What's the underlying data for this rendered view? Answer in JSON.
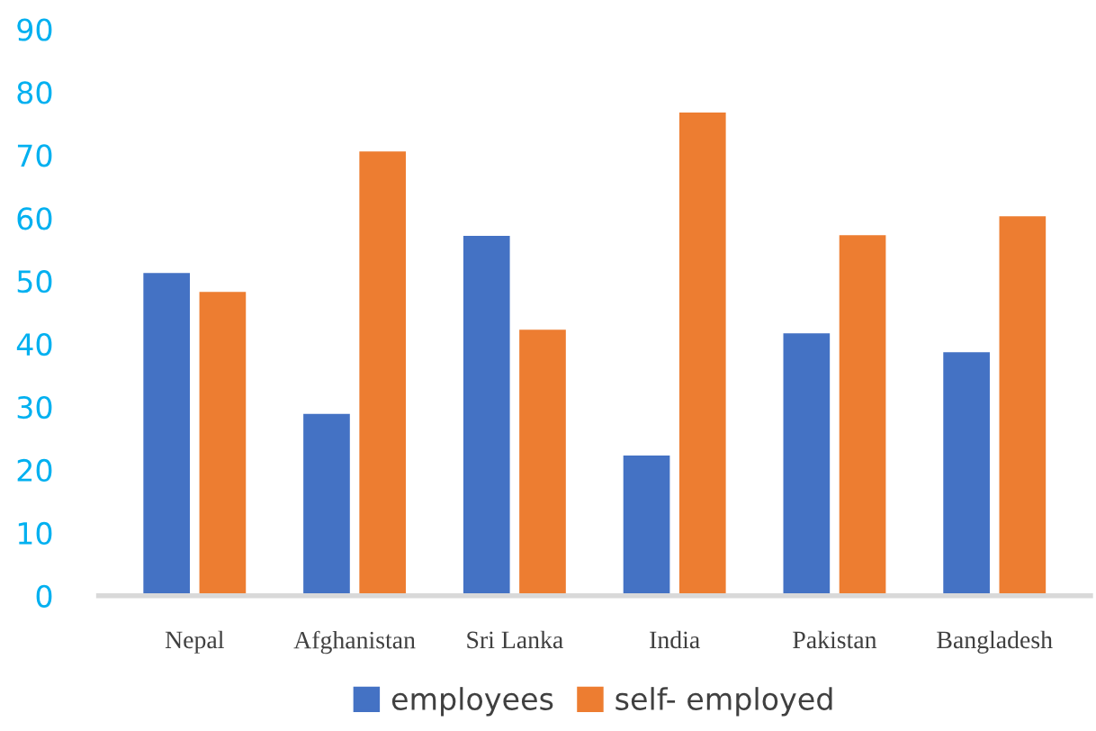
{
  "chart_data": {
    "type": "bar",
    "categories": [
      "Nepal",
      "Afghanistan",
      "Sri Lanka",
      "India",
      "Pakistan",
      "Bangladesh"
    ],
    "series": [
      {
        "name": "employees",
        "color": "#4472c4",
        "values": [
          51.4,
          29.0,
          57.3,
          22.4,
          41.8,
          38.8
        ]
      },
      {
        "name": "self- employed",
        "color": "#ed7d31",
        "values": [
          48.4,
          70.7,
          42.4,
          76.9,
          57.4,
          60.4
        ]
      }
    ],
    "ylim": [
      0,
      90
    ],
    "yticks": [
      0,
      10,
      20,
      30,
      40,
      50,
      60,
      70,
      80,
      90
    ],
    "grid": false,
    "legend": "bottom"
  }
}
